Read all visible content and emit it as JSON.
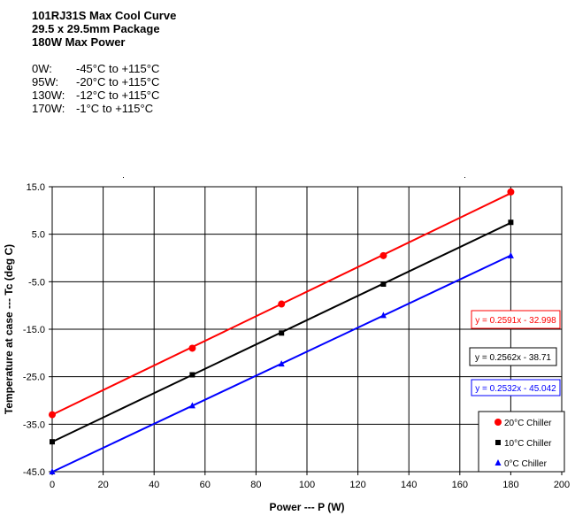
{
  "header": {
    "title_lines": [
      "101RJ31S Max Cool Curve",
      "29.5 x 29.5mm Package",
      "180W Max Power"
    ],
    "ranges": [
      {
        "watts": "0W:",
        "range": "-45°C to +115°C"
      },
      {
        "watts": "95W:",
        "range": "-20°C to +115°C"
      },
      {
        "watts": "130W:",
        "range": "-12°C to +115°C"
      },
      {
        "watts": "170W:",
        "range": "-1°C to +115°C"
      }
    ]
  },
  "chart_data": {
    "type": "scatter",
    "title": "",
    "xlabel": "Power --- P (W)",
    "ylabel": "Temperature at case --- Tc (deg C)",
    "xlim": [
      0,
      200
    ],
    "ylim": [
      -45,
      15
    ],
    "x_ticks": [
      "0",
      "20",
      "40",
      "60",
      "80",
      "100",
      "120",
      "140",
      "160",
      "180",
      "200"
    ],
    "y_ticks": [
      "15.0",
      "5.0",
      "-5.0",
      "-15.0",
      "-25.0",
      "-35.0",
      "-45.0"
    ],
    "grid": true,
    "legend_position": "bottom-right",
    "series": [
      {
        "name": "20°C Chiller",
        "color": "#ff0000",
        "marker": "circle",
        "x": [
          0,
          55,
          90,
          130,
          180
        ],
        "y": [
          -33,
          -19,
          -9.7,
          0.5,
          13.9
        ],
        "trendline": {
          "slope": 0.2591,
          "intercept": -32.998,
          "label": "y = 0.2591x - 32.998"
        }
      },
      {
        "name": "10°C Chiller",
        "color": "#000000",
        "marker": "square",
        "x": [
          0,
          55,
          90,
          130,
          180
        ],
        "y": [
          -38.7,
          -24.6,
          -15.8,
          -5.5,
          7.5
        ],
        "trendline": {
          "slope": 0.2562,
          "intercept": -38.71,
          "label": "y = 0.2562x - 38.71"
        }
      },
      {
        "name": "0°C Chiller",
        "color": "#0000ff",
        "marker": "triangle",
        "x": [
          0,
          55,
          90,
          130,
          180
        ],
        "y": [
          -45,
          -31.1,
          -22.3,
          -12.1,
          0.5
        ],
        "trendline": {
          "slope": 0.2532,
          "intercept": -45.042,
          "label": "y = 0.2532x - 45.042"
        }
      }
    ]
  }
}
